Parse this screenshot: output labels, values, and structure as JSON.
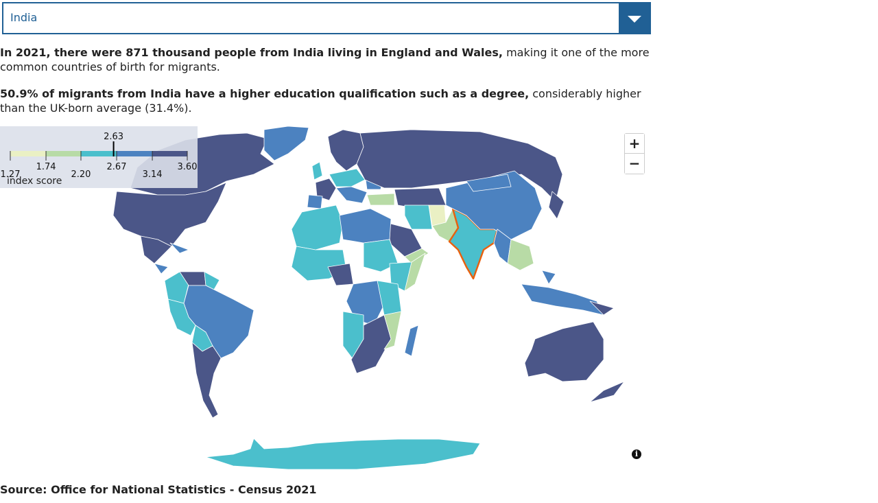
{
  "selector": {
    "selected": "India"
  },
  "summary": {
    "p1_bold": "In 2021, there were 871 thousand people from India living in England and Wales,",
    "p1_rest": " making it one of the more common countries of birth for migrants.",
    "p2_bold": "50.9% of migrants from India have a higher education qualification such as a degree,",
    "p2_rest": " considerably higher than the UK-born average (31.4%)."
  },
  "legend": {
    "title": "index score",
    "breaks": [
      "1.27",
      "1.74",
      "2.20",
      "2.67",
      "3.14",
      "3.60"
    ],
    "break_values": [
      1.27,
      1.74,
      2.2,
      2.67,
      3.14,
      3.6
    ],
    "colors": [
      "#eaf0c4",
      "#b8dba6",
      "#4bbfcc",
      "#4c82c0",
      "#4b5688"
    ],
    "marker_value": 2.63,
    "marker_label": "2.63"
  },
  "map": {
    "highlighted_country": "India",
    "highlight_color": "#e8610f",
    "ocean": "#ffffff",
    "border": "#ffffff"
  },
  "zoom": {
    "in_label": "+",
    "out_label": "−"
  },
  "info_icon": "i",
  "source": "Source: Office for National Statistics - Census 2021"
}
